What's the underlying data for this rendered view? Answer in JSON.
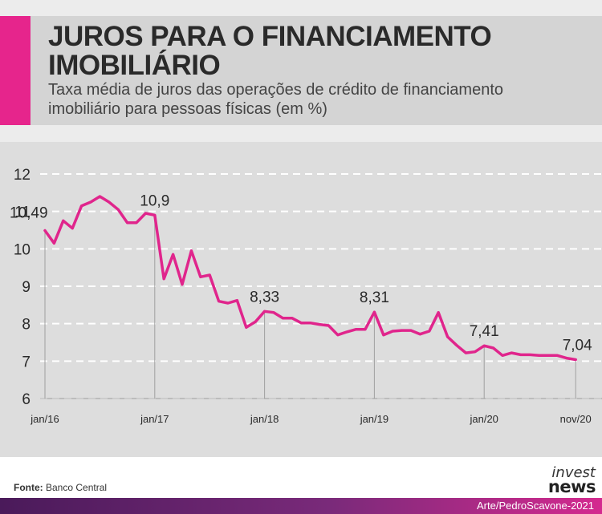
{
  "header": {
    "title_line1": "JUROS PARA O FINANCIAMENTO",
    "title_line2": "IMOBILIÁRIO",
    "subtitle_line1": "Taxa média de juros das operações de crédito de financiamento",
    "subtitle_line2": "imobiliário para pessoas físicas (em %)"
  },
  "footer": {
    "source_label": "Fonte:",
    "source_value": "Banco Central",
    "logo_top": "invest",
    "logo_bottom": "news",
    "credit": "Arte/PedroScavone-2021"
  },
  "colors": {
    "accent": "#e6258c",
    "line": "#e0258c"
  },
  "chart_data": {
    "type": "line",
    "title": "JUROS PARA O FINANCIAMENTO IMOBILIÁRIO",
    "subtitle": "Taxa média de juros das operações de crédito de financiamento imobiliário para pessoas físicas (em %)",
    "ylim": [
      6,
      12
    ],
    "yticks": [
      6,
      7,
      8,
      9,
      10,
      11,
      12
    ],
    "grid": true,
    "x_start": "jan/16",
    "x_ticks": [
      {
        "label": "jan/16",
        "index": 0
      },
      {
        "label": "jan/17",
        "index": 12
      },
      {
        "label": "jan/18",
        "index": 24
      },
      {
        "label": "jan/19",
        "index": 36
      },
      {
        "label": "jan/20",
        "index": 48
      },
      {
        "label": "nov/20",
        "index": 58
      }
    ],
    "series": [
      {
        "values": [
          10.49,
          10.15,
          10.75,
          10.55,
          11.15,
          11.25,
          11.4,
          11.25,
          11.05,
          10.7,
          10.7,
          10.95,
          10.9,
          9.2,
          9.85,
          9.05,
          9.95,
          9.25,
          9.3,
          8.6,
          8.55,
          8.62,
          7.9,
          8.05,
          8.33,
          8.3,
          8.15,
          8.15,
          8.02,
          8.02,
          7.98,
          7.95,
          7.7,
          7.78,
          7.85,
          7.85,
          8.31,
          7.7,
          7.8,
          7.82,
          7.82,
          7.72,
          7.8,
          8.3,
          7.65,
          7.42,
          7.22,
          7.25,
          7.41,
          7.35,
          7.15,
          7.22,
          7.17,
          7.17,
          7.15,
          7.15,
          7.15,
          7.08,
          7.04
        ]
      }
    ],
    "annotations": [
      {
        "index": 0,
        "label": "10,49"
      },
      {
        "index": 12,
        "label": "10,9"
      },
      {
        "index": 24,
        "label": "8,33"
      },
      {
        "index": 36,
        "label": "8,31"
      },
      {
        "index": 48,
        "label": "7,41"
      },
      {
        "index": 58,
        "label": "7,04"
      }
    ]
  }
}
